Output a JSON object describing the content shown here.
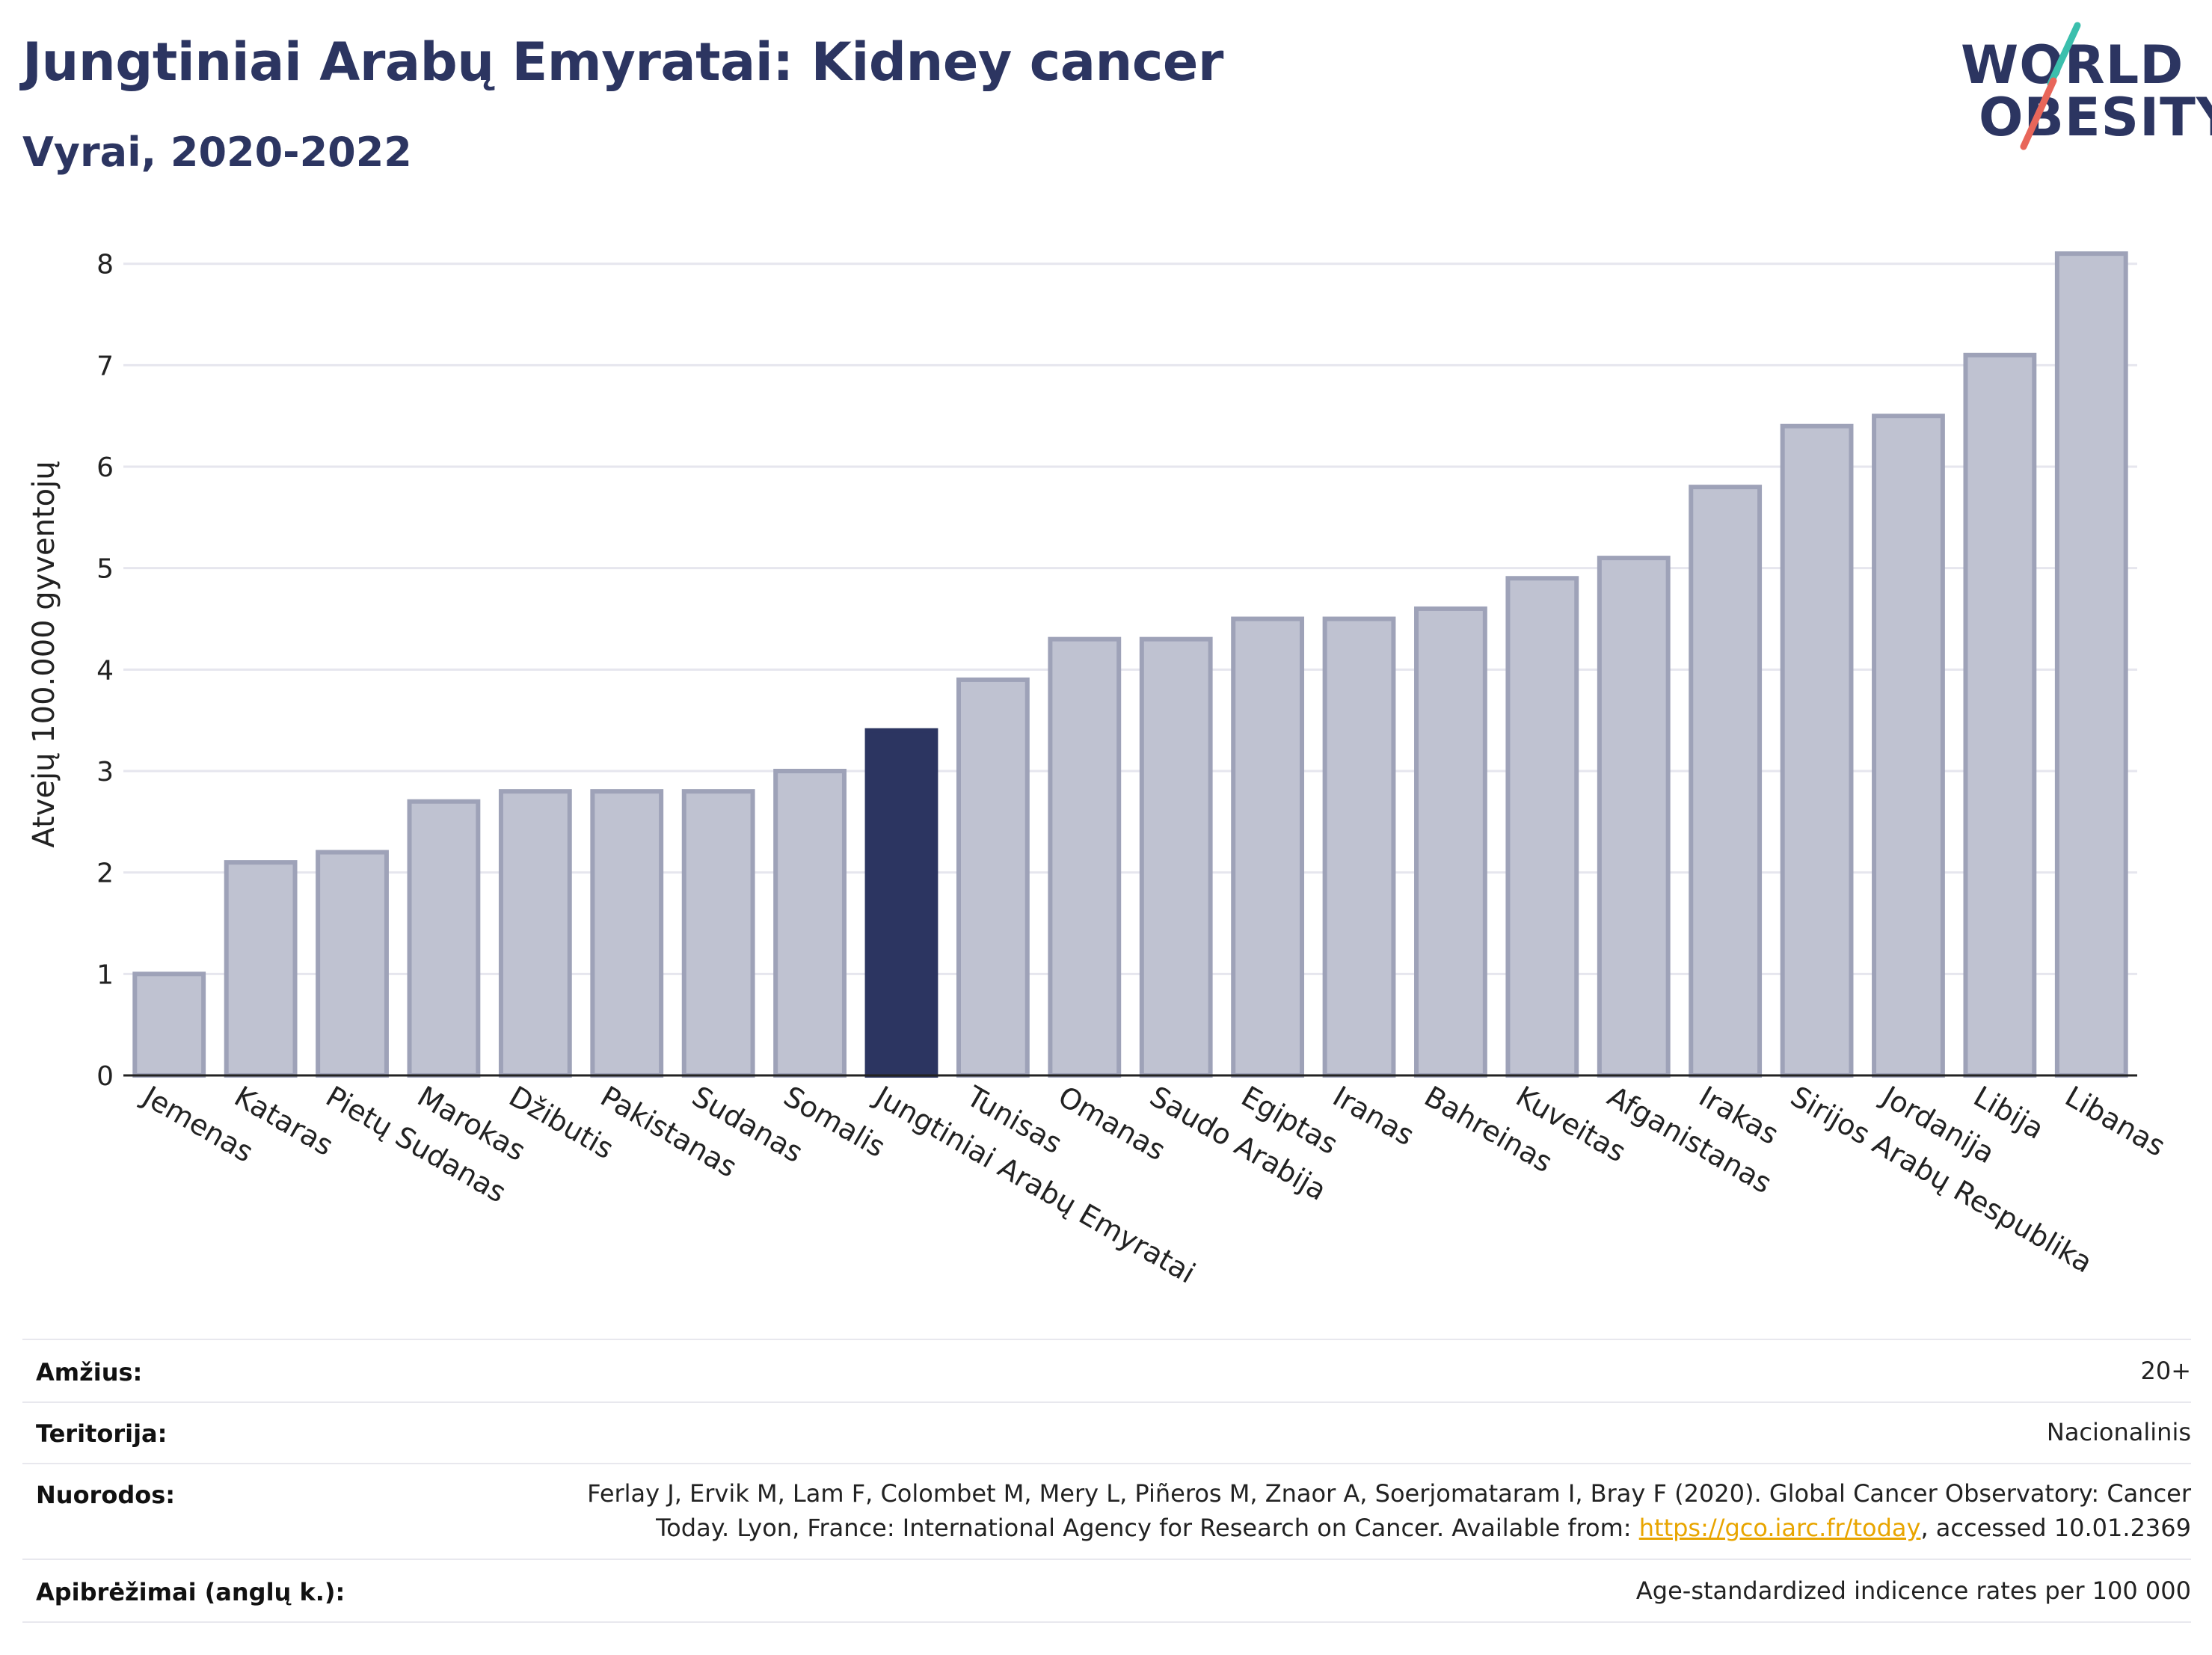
{
  "header": {
    "title": "Jungtiniai Arabų Emyratai: Kidney cancer",
    "subtitle": "Vyrai, 2020-2022"
  },
  "logo": {
    "line1": "WORLD",
    "line2": "OBESITY",
    "slash_colors": [
      "#3bbfad",
      "#e8665a"
    ]
  },
  "colors": {
    "bar": "#bfc2d1",
    "bar_border": "#9ea2b8",
    "highlight": "#2c3561",
    "grid": "#e6e6ee",
    "axis": "#222222",
    "link": "#e8a500"
  },
  "chart_data": {
    "type": "bar",
    "ylabel": "Atvejų 100.000 gyventojų",
    "ylim": [
      0,
      8.3
    ],
    "yticks": [
      0,
      1,
      2,
      3,
      4,
      5,
      6,
      7,
      8
    ],
    "grid": true,
    "highlight": "Jungtiniai Arabų Emyratai",
    "categories": [
      "Jemenas",
      "Kataras",
      "Pietų Sudanas",
      "Marokas",
      "Džibutis",
      "Pakistanas",
      "Sudanas",
      "Somalis",
      "Jungtiniai Arabų Emyratai",
      "Tunisas",
      "Omanas",
      "Saudo Arabija",
      "Egiptas",
      "Iranas",
      "Bahreinas",
      "Kuveitas",
      "Afganistanas",
      "Irakas",
      "Sirijos Arabų Respublika",
      "Jordanija",
      "Libija",
      "Libanas"
    ],
    "values": [
      1.0,
      2.1,
      2.2,
      2.7,
      2.8,
      2.8,
      2.8,
      3.0,
      3.4,
      3.9,
      4.3,
      4.3,
      4.5,
      4.5,
      4.6,
      4.9,
      5.1,
      5.8,
      6.4,
      6.5,
      7.1,
      8.1
    ]
  },
  "info": {
    "age_label": "Amžius:",
    "age_value": "20+",
    "territory_label": "Teritorija:",
    "territory_value": "Nacionalinis",
    "references_label": "Nuorodos:",
    "references_line1": "Ferlay J, Ervik M, Lam F, Colombet M, Mery L, Piñeros M, Znaor A, Soerjomataram I, Bray F (2020). Global Cancer Observatory: Cancer",
    "references_line2_pre": "Today. Lyon, France: International Agency for Research on Cancer. Available from: ",
    "references_link": "https://gco.iarc.fr/today",
    "references_line2_post": ", accessed 10.01.2369",
    "definitions_label": "Apibrėžimai (anglų k.):",
    "definitions_value": "Age-standardized indicence rates per 100 000"
  }
}
